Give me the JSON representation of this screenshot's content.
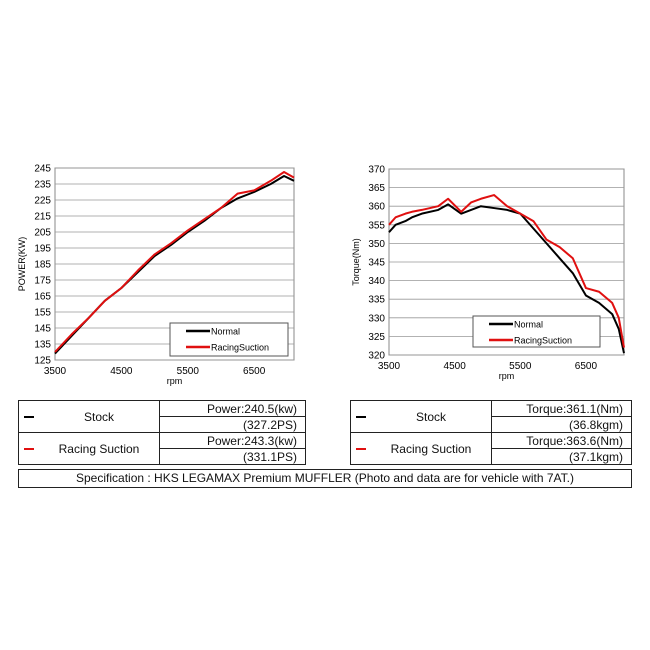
{
  "chart_data": [
    {
      "type": "line",
      "xlabel": "rpm",
      "ylabel": "POWER(KW)",
      "xlim": [
        3500,
        7100
      ],
      "ylim": [
        125,
        245
      ],
      "xticks": [
        3500,
        4500,
        5500,
        6500
      ],
      "yticks": [
        125,
        135,
        145,
        155,
        165,
        175,
        185,
        195,
        205,
        215,
        225,
        235,
        245
      ],
      "grid": true,
      "legend": "bottom-right",
      "series": [
        {
          "name": "Normal",
          "color": "#000000",
          "x": [
            3500,
            3750,
            4000,
            4250,
            4500,
            4750,
            5000,
            5250,
            5500,
            5750,
            6000,
            6250,
            6500,
            6750,
            6950,
            7100
          ],
          "y": [
            129,
            140,
            151,
            162,
            170,
            180,
            190,
            197,
            205,
            212,
            220,
            226,
            230,
            235,
            240,
            237
          ]
        },
        {
          "name": "RacingSuction",
          "color": "#e01010",
          "x": [
            3500,
            3750,
            4000,
            4250,
            4500,
            4750,
            5000,
            5250,
            5500,
            5750,
            6000,
            6250,
            6500,
            6750,
            6950,
            7100
          ],
          "y": [
            130,
            141,
            151,
            162,
            170,
            181,
            191,
            198,
            206,
            213,
            220,
            229,
            231,
            237,
            242.5,
            239
          ]
        }
      ]
    },
    {
      "type": "line",
      "xlabel": "rpm",
      "ylabel": "Torque(Nm)",
      "xlim": [
        3500,
        7080
      ],
      "ylim": [
        320,
        370
      ],
      "xticks": [
        3500,
        4500,
        5500,
        6500
      ],
      "yticks": [
        320,
        325,
        330,
        335,
        340,
        345,
        350,
        355,
        360,
        365,
        370
      ],
      "grid": true,
      "legend": "bottom-right",
      "series": [
        {
          "name": "Normal",
          "color": "#000000",
          "x": [
            3500,
            3600,
            3750,
            3850,
            4000,
            4250,
            4400,
            4600,
            4750,
            4900,
            5100,
            5300,
            5500,
            5700,
            5900,
            6100,
            6300,
            6500,
            6700,
            6900,
            7000,
            7080
          ],
          "y": [
            353,
            355,
            356,
            357,
            358,
            359,
            360.5,
            358,
            359,
            360,
            359.5,
            359,
            358,
            354,
            350,
            346,
            342,
            336,
            334,
            331,
            327,
            320.5
          ]
        },
        {
          "name": "RacingSuction",
          "color": "#e01010",
          "x": [
            3500,
            3600,
            3750,
            3850,
            4000,
            4250,
            4400,
            4600,
            4750,
            4900,
            5100,
            5300,
            5500,
            5700,
            5900,
            6100,
            6300,
            6500,
            6700,
            6900,
            7000,
            7080
          ],
          "y": [
            355,
            357,
            358,
            358.5,
            359,
            360,
            362,
            358.5,
            361,
            362,
            363,
            360,
            358,
            356,
            351,
            349,
            346,
            338,
            337,
            334,
            330,
            322
          ]
        }
      ]
    }
  ],
  "power_table": {
    "rows": [
      {
        "label": "Stock",
        "color": "#000000",
        "v1": "Power:240.5(kw)",
        "v2": "(327.2PS)"
      },
      {
        "label": "Racing Suction",
        "color": "#e01010",
        "v1": "Power:243.3(kw)",
        "v2": "(331.1PS)"
      }
    ]
  },
  "torque_table": {
    "rows": [
      {
        "label": "Stock",
        "color": "#000000",
        "v1": "Torque:361.1(Nm)",
        "v2": "(36.8kgm)"
      },
      {
        "label": "Racing Suction",
        "color": "#e01010",
        "v1": "Torque:363.6(Nm)",
        "v2": "(37.1kgm)"
      }
    ]
  },
  "specification": "Specification : HKS LEGAMAX Premium MUFFLER (Photo and data are for vehicle with 7AT.)"
}
